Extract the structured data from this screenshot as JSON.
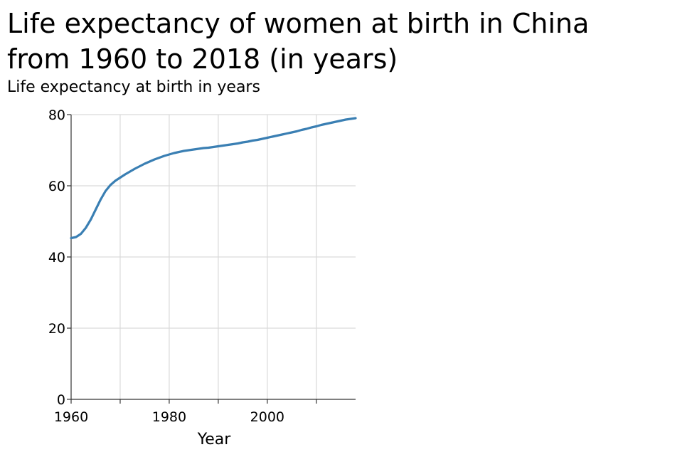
{
  "chart_data": {
    "type": "line",
    "title_lines": [
      "Life expectancy of women at birth in China",
      "from 1960 to 2018 (in years)"
    ],
    "ylabel": "Life expectancy at birth in years",
    "xlabel": "Year",
    "xlim": [
      1960,
      2018
    ],
    "ylim": [
      0,
      80
    ],
    "x_ticks": [
      1960,
      1970,
      1980,
      1990,
      2000,
      2010
    ],
    "x_tick_labels": [
      "1960",
      "",
      "1980",
      "",
      "2000",
      ""
    ],
    "y_ticks": [
      0,
      20,
      40,
      60,
      80
    ],
    "y_tick_labels": [
      "0",
      "20",
      "40",
      "60",
      "80"
    ],
    "grid": true,
    "line_color": "#3a7fb3",
    "series": [
      {
        "x": [
          1960,
          1961,
          1962,
          1963,
          1964,
          1965,
          1966,
          1967,
          1968,
          1969,
          1970,
          1971,
          1972,
          1973,
          1974,
          1975,
          1976,
          1977,
          1978,
          1979,
          1980,
          1981,
          1982,
          1983,
          1984,
          1985,
          1986,
          1987,
          1988,
          1989,
          1990,
          1991,
          1992,
          1993,
          1994,
          1995,
          1996,
          1997,
          1998,
          1999,
          2000,
          2001,
          2002,
          2003,
          2004,
          2005,
          2006,
          2007,
          2008,
          2009,
          2010,
          2011,
          2012,
          2013,
          2014,
          2015,
          2016,
          2017,
          2018
        ],
        "values": [
          45.3,
          45.6,
          46.5,
          48.2,
          50.5,
          53.3,
          56.1,
          58.5,
          60.2,
          61.4,
          62.3,
          63.2,
          64.0,
          64.8,
          65.5,
          66.2,
          66.8,
          67.4,
          67.9,
          68.4,
          68.8,
          69.2,
          69.5,
          69.8,
          70.0,
          70.2,
          70.4,
          70.6,
          70.7,
          70.9,
          71.1,
          71.3,
          71.5,
          71.7,
          71.9,
          72.2,
          72.4,
          72.7,
          72.9,
          73.2,
          73.5,
          73.8,
          74.1,
          74.4,
          74.7,
          75.0,
          75.3,
          75.7,
          76.0,
          76.4,
          76.7,
          77.1,
          77.4,
          77.7,
          78.0,
          78.3,
          78.6,
          78.8,
          79.0
        ]
      }
    ]
  }
}
